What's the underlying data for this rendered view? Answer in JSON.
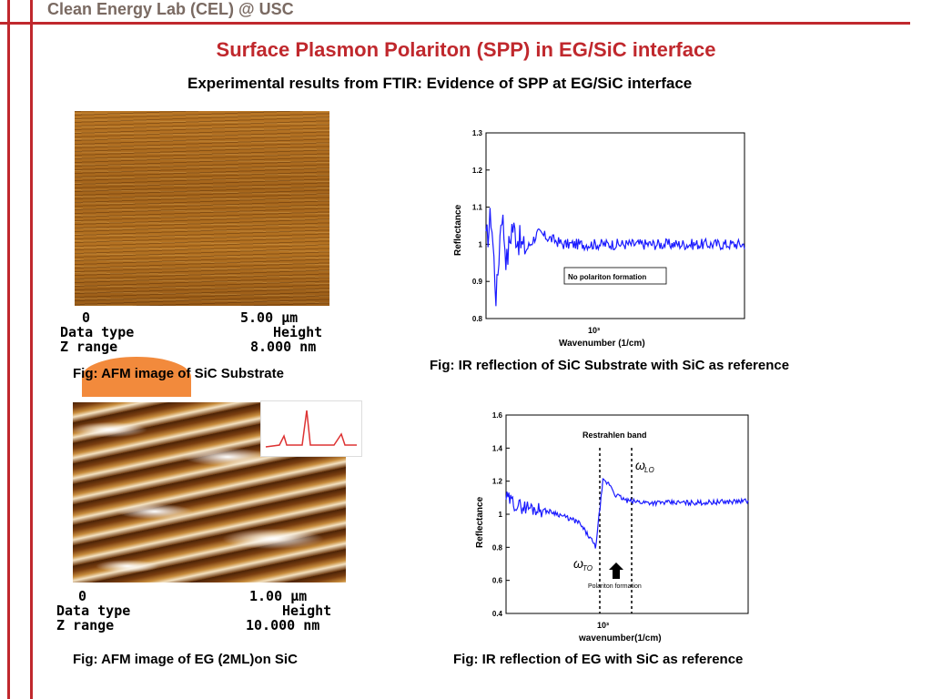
{
  "header": "Clean Energy Lab (CEL) @ USC",
  "title": "Surface Plasmon Polariton (SPP) in EG/SiC interface",
  "subtitle": "Experimental results from FTIR: Evidence of SPP at EG/SiC interface",
  "afm1": {
    "scale_left": "0",
    "scale_right": "5.00 µm",
    "row1_label": "Data type",
    "row1_value": "Height",
    "row2_label": "Z range",
    "row2_value": "8.000 nm",
    "caption": "Fig: AFM image of SiC Substrate"
  },
  "afm2": {
    "scale_left": "0",
    "scale_right": "1.00 µm",
    "row1_label": "Data type",
    "row1_value": "Height",
    "row2_label": "Z range",
    "row2_value": "10.000 nm",
    "caption": "Fig: AFM image of EG (2ML)on SiC"
  },
  "colors": {
    "accent": "#c0282d",
    "series": "#1a1aff",
    "afm_dark": "#5a2e08",
    "afm_light": "#c98a2a"
  },
  "chart_data": [
    {
      "type": "line",
      "ylabel": "Reflectance",
      "xlabel": "Wavenumber (1/cm)",
      "x_tick_label": "10³",
      "ylim": [
        0.8,
        1.3
      ],
      "yticks": [
        0.8,
        0.9,
        1,
        1.1,
        1.2,
        1.3
      ],
      "annotation": "No polariton formation",
      "caption": "Fig: IR reflection of SiC Substrate with SiC as reference",
      "series": [
        {
          "x": [
            0,
            0.02,
            0.04,
            0.06,
            0.08,
            0.1,
            0.15,
            0.2,
            0.3,
            0.5,
            0.7,
            1.0
          ],
          "values": [
            1.0,
            1.08,
            0.85,
            1.1,
            0.95,
            1.05,
            0.98,
            1.03,
            1.0,
            1.0,
            1.0,
            1.0
          ]
        }
      ]
    },
    {
      "type": "line",
      "ylabel": "Reflectance",
      "xlabel": "wavenumber(1/cm)",
      "x_tick_label": "10³",
      "ylim": [
        0.4,
        1.6
      ],
      "yticks": [
        0.4,
        0.6,
        0.8,
        1,
        1.2,
        1.4,
        1.6
      ],
      "annotation_band": "Restrahlen band",
      "annotation_formation": "Polariton formation",
      "label_lo": "LO",
      "label_to": "TO",
      "caption": "Fig: IR reflection of EG with SiC as reference",
      "series": [
        {
          "x": [
            0,
            0.05,
            0.1,
            0.2,
            0.3,
            0.35,
            0.37,
            0.4,
            0.43,
            0.45,
            0.5,
            0.6,
            0.8,
            1.0
          ],
          "values": [
            1.1,
            1.05,
            1.04,
            1.01,
            0.95,
            0.85,
            0.8,
            1.2,
            1.18,
            1.12,
            1.08,
            1.07,
            1.07,
            1.08
          ]
        }
      ]
    }
  ]
}
